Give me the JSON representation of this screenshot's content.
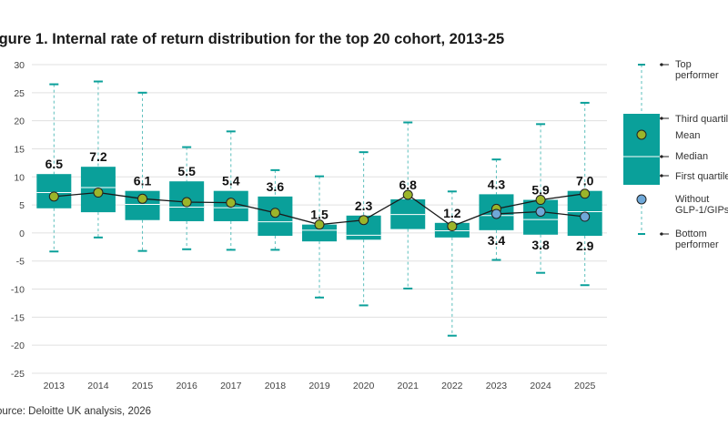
{
  "figure": {
    "title": "igure 1. Internal rate of return distribution for the top 20 cohort, 2013-25",
    "source": "ource: Deloitte UK analysis, 2026"
  },
  "colors": {
    "box": "#0aa09a",
    "whisker": "#5bbfbc",
    "median": "#ffffff",
    "mean": "#9bb52a",
    "without": "#6fa8d8",
    "line": "#1a1a1a",
    "grid": "#e0e0e0"
  },
  "chart_data": {
    "type": "box",
    "title": "igure 1. Internal rate of return distribution for the top 20 cohort, 2013-25",
    "ylabel": "",
    "ylim": [
      -25,
      30
    ],
    "y_ticks": [
      30,
      25,
      20,
      15,
      10,
      5,
      0,
      -5,
      -10,
      -15,
      -20,
      -25
    ],
    "grid": true,
    "legend_position": "right",
    "categories": [
      "2013",
      "2014",
      "2015",
      "2016",
      "2017",
      "2018",
      "2019",
      "2020",
      "2021",
      "2022",
      "2023",
      "2024",
      "2025"
    ],
    "boxes": [
      {
        "x": "2013",
        "min": -3.3,
        "q1": 4.4,
        "median": 7.2,
        "q3": 10.5,
        "max": 26.5
      },
      {
        "x": "2014",
        "min": -0.8,
        "q1": 3.7,
        "median": 8.1,
        "q3": 11.8,
        "max": 27.0
      },
      {
        "x": "2015",
        "min": -3.2,
        "q1": 2.3,
        "median": 5.1,
        "q3": 7.5,
        "max": 25.0
      },
      {
        "x": "2016",
        "min": -2.9,
        "q1": 2.1,
        "median": 4.6,
        "q3": 9.2,
        "max": 15.3
      },
      {
        "x": "2017",
        "min": -3.0,
        "q1": 2.1,
        "median": 4.5,
        "q3": 7.5,
        "max": 18.1
      },
      {
        "x": "2018",
        "min": -3.0,
        "q1": -0.5,
        "median": 2.0,
        "q3": 6.5,
        "max": 11.2
      },
      {
        "x": "2019",
        "min": -11.5,
        "q1": -1.5,
        "median": 0.5,
        "q3": 1.5,
        "max": 10.1
      },
      {
        "x": "2020",
        "min": -12.9,
        "q1": -1.2,
        "median": -0.4,
        "q3": 3.1,
        "max": 14.4
      },
      {
        "x": "2021",
        "min": -9.9,
        "q1": 0.7,
        "median": 3.3,
        "q3": 6.0,
        "max": 19.7
      },
      {
        "x": "2022",
        "min": -18.3,
        "q1": -0.8,
        "median": 0.4,
        "q3": 1.8,
        "max": 7.4
      },
      {
        "x": "2023",
        "min": -4.8,
        "q1": 0.5,
        "median": 3.1,
        "q3": 6.9,
        "max": 13.1
      },
      {
        "x": "2024",
        "min": -7.1,
        "q1": -0.3,
        "median": 2.4,
        "q3": 5.9,
        "max": 19.4
      },
      {
        "x": "2025",
        "min": -9.3,
        "q1": -0.5,
        "median": 3.8,
        "q3": 7.5,
        "max": 23.2
      }
    ],
    "series": [
      {
        "name": "Mean",
        "values": [
          6.5,
          7.2,
          6.1,
          5.5,
          5.4,
          3.6,
          1.5,
          2.3,
          6.8,
          1.2,
          4.3,
          5.9,
          7.0
        ],
        "labels": [
          "6.5",
          "7.2",
          "6.1",
          "5.5",
          "5.4",
          "3.6",
          "1.5",
          "2.3",
          "6.8",
          "1.2",
          "4.3",
          "5.9",
          "7.0"
        ]
      },
      {
        "name": "Without GLP-1/GIPs",
        "x": [
          "2023",
          "2024",
          "2025"
        ],
        "values": [
          3.4,
          3.8,
          2.9
        ],
        "labels": [
          "3.4",
          "3.8",
          "2.9"
        ]
      }
    ],
    "legend": {
      "top": "Top performer",
      "third_quartile": "Third quartile",
      "mean": "Mean",
      "median": "Median",
      "first_quartile": "First quartile",
      "without": "Without GLP-1/GIPs",
      "bottom": "Bottom performer"
    }
  }
}
